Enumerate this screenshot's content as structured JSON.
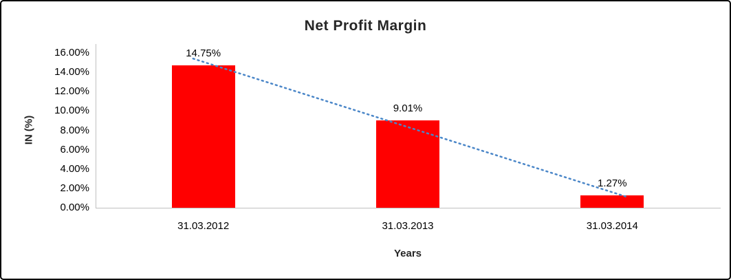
{
  "chart_data": {
    "type": "bar",
    "title": "Net Profit Margin",
    "xlabel": "Years",
    "ylabel": "IN (%)",
    "categories": [
      "31.03.2012",
      "31.03.2013",
      "31.03.2014"
    ],
    "values": [
      14.75,
      9.01,
      1.27
    ],
    "data_labels": [
      "14.75%",
      "9.01%",
      "1.27%"
    ],
    "ylim": [
      0,
      16
    ],
    "ytick_step": 2,
    "ytick_labels": [
      "0.00%",
      "2.00%",
      "4.00%",
      "6.00%",
      "8.00%",
      "10.00%",
      "12.00%",
      "14.00%",
      "16.00%"
    ],
    "grid": "off",
    "legend": "none",
    "bar_color": "#FF0000",
    "trendline": {
      "type": "linear",
      "style": "dotted",
      "color": "#4A86C8"
    },
    "axis_color": "#BFBFBF",
    "text_color": "#000000",
    "title_color": "#262626"
  }
}
